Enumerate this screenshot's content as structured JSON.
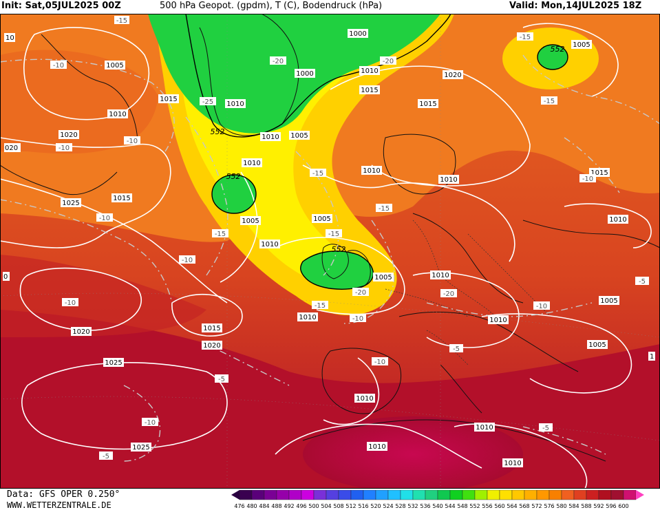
{
  "header": {
    "init": "Init: Sat,05JUL2025 00Z",
    "title": "500 hPa Geopot. (gpdm), T (C), Bodendruck (hPa)",
    "valid": "Valid: Mon,14JUL2025 18Z"
  },
  "footer": {
    "data_source": "Data: GFS OPER 0.250°",
    "website": "WWW.WETTERZENTRALE.DE"
  },
  "legend": {
    "labels": [
      "476",
      "480",
      "484",
      "488",
      "492",
      "496",
      "500",
      "504",
      "508",
      "512",
      "516",
      "520",
      "524",
      "528",
      "532",
      "536",
      "540",
      "544",
      "548",
      "552",
      "556",
      "560",
      "564",
      "568",
      "572",
      "576",
      "580",
      "584",
      "588",
      "592",
      "596",
      "600"
    ],
    "colors": [
      "#3a0050",
      "#5a007a",
      "#7a0095",
      "#9600aa",
      "#b000c8",
      "#cc00e0",
      "#7a30d8",
      "#5540e0",
      "#3a4ce8",
      "#2060f0",
      "#2080ff",
      "#20a0ff",
      "#20c0ff",
      "#20e0e8",
      "#20e0b0",
      "#20d080",
      "#10c850",
      "#10d020",
      "#40e010",
      "#a0f000",
      "#f0f000",
      "#ffe000",
      "#ffc800",
      "#ffb000",
      "#ff9800",
      "#f88000",
      "#f06020",
      "#e04020",
      "#cc2020",
      "#b01020",
      "#a01030",
      "#d01070"
    ]
  },
  "map": {
    "fields": [
      "geopotential-500hPa",
      "temperature-500hPa",
      "surface-pressure"
    ],
    "pressure_labels": [
      "1005",
      "1010",
      "1015",
      "1020",
      "1025",
      "1000",
      "1010",
      "1015",
      "1020",
      "1010",
      "1015",
      "1010",
      "1005",
      "1010",
      "1005",
      "1010",
      "1015",
      "1020",
      "1025",
      "1025",
      "1020",
      "1015",
      "1010",
      "1005",
      "1010",
      "1010",
      "1010",
      "1005",
      "1010",
      "1015",
      "1010",
      "1005",
      "1010",
      "1010",
      "1005",
      "1000",
      "1010",
      "1005",
      "1010"
    ],
    "temperature_labels": [
      "-15",
      "-10",
      "-10",
      "-15",
      "-10",
      "-20",
      "-25",
      "-20",
      "-20",
      "-15",
      "-15",
      "-15",
      "-10",
      "-15",
      "-10",
      "-15",
      "-20",
      "-10",
      "-10",
      "-10",
      "-5",
      "-10",
      "-5",
      "-10",
      "-5",
      "-10",
      "-5",
      "-5",
      "-15"
    ],
    "height_labels": [
      "552",
      "552",
      "552",
      "552"
    ],
    "edge_labels": [
      "10",
      "020",
      "0",
      "1"
    ]
  }
}
